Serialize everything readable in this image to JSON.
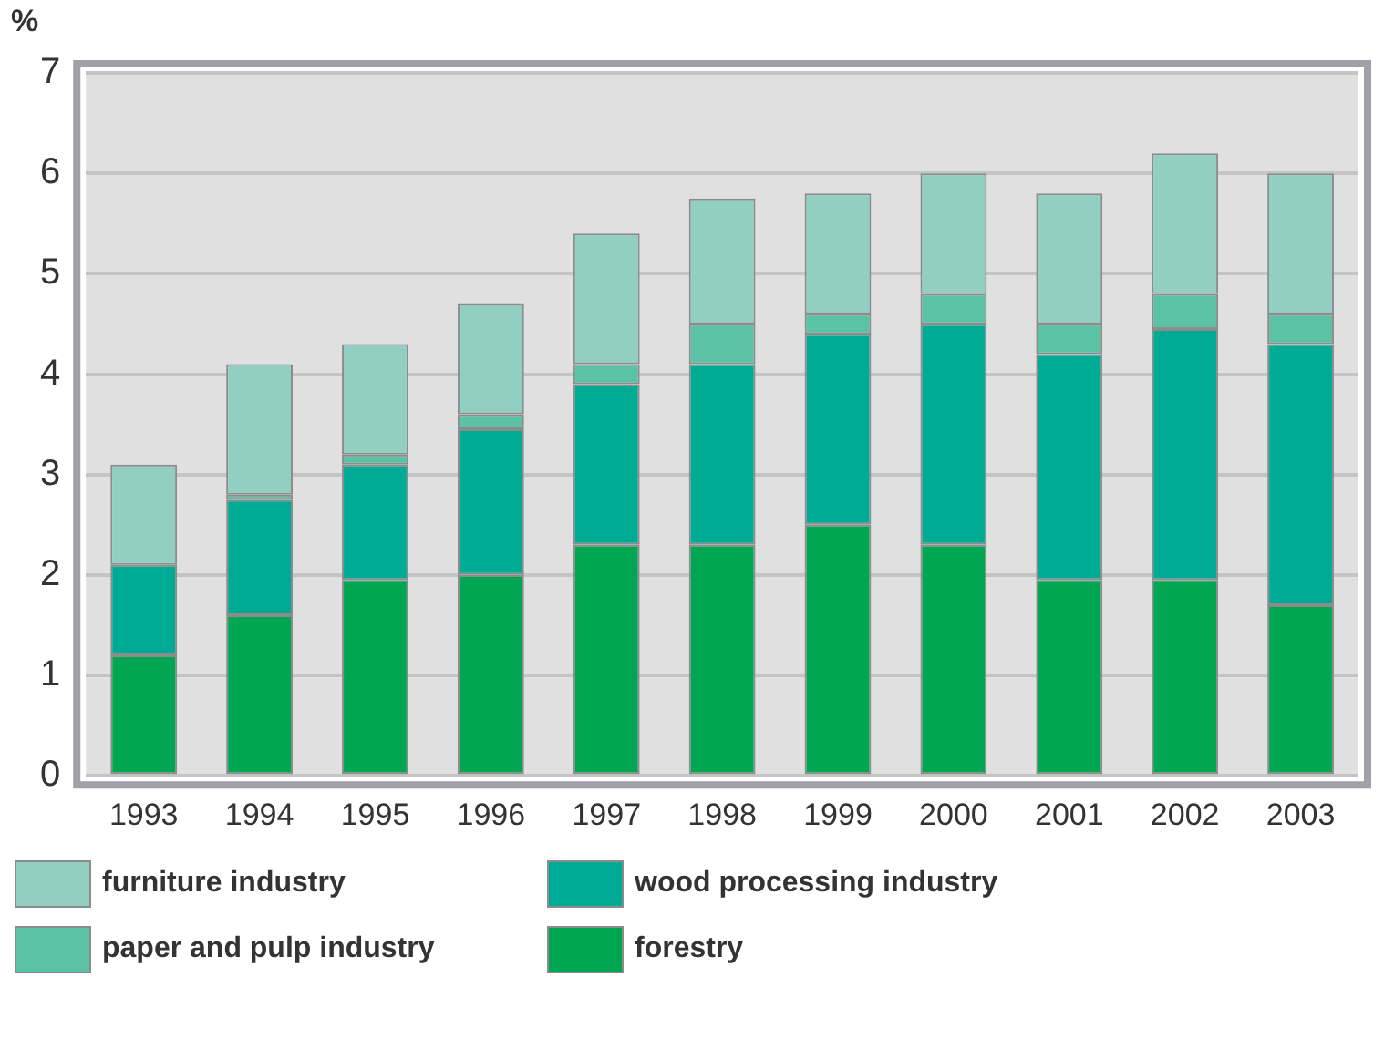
{
  "chart_data": {
    "type": "bar",
    "stacked": true,
    "ylabel": "%",
    "categories": [
      "1993",
      "1994",
      "1995",
      "1996",
      "1997",
      "1998",
      "1999",
      "2000",
      "2001",
      "2002",
      "2003"
    ],
    "series": [
      {
        "name": "forestry",
        "color": "#00a651",
        "values": [
          1.2,
          1.6,
          1.95,
          2.0,
          2.3,
          2.3,
          2.5,
          2.3,
          1.95,
          1.95,
          1.7
        ]
      },
      {
        "name": "wood processing industry",
        "color": "#00ab96",
        "values": [
          0.9,
          1.15,
          1.15,
          1.45,
          1.6,
          1.8,
          1.9,
          2.2,
          2.25,
          2.5,
          2.6
        ]
      },
      {
        "name": "paper and pulp industry",
        "color": "#5bc2a5",
        "values": [
          0,
          0.05,
          0.1,
          0.15,
          0.2,
          0.4,
          0.2,
          0.3,
          0.3,
          0.35,
          0.3
        ]
      },
      {
        "name": "furniture industry",
        "color": "#91cfc3",
        "values": [
          1.0,
          1.3,
          1.1,
          1.1,
          1.3,
          1.25,
          1.2,
          1.2,
          1.3,
          1.4,
          1.4
        ]
      }
    ],
    "ylim": [
      0,
      7
    ],
    "yticks": [
      0,
      1,
      2,
      3,
      4,
      5,
      6,
      7
    ],
    "grid": "y",
    "legend": "bottom"
  }
}
